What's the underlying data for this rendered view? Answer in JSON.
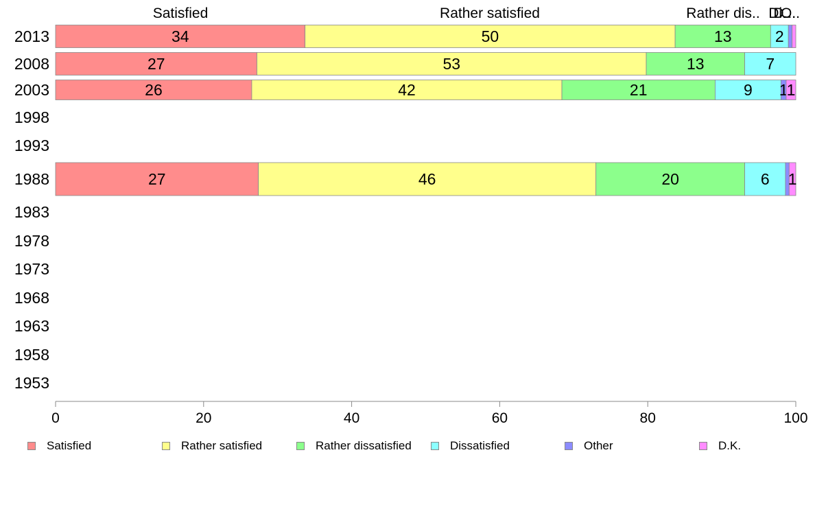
{
  "chart_data": {
    "type": "bar",
    "orientation": "horizontal",
    "stacked": true,
    "title": "",
    "xlabel": "",
    "ylabel": "",
    "xlim": [
      0,
      100
    ],
    "x_ticks": [
      "0",
      "20",
      "40",
      "60",
      "80",
      "100"
    ],
    "categories": [
      "2013",
      "2008",
      "2003",
      "1998",
      "1993",
      "1988",
      "1983",
      "1978",
      "1973",
      "1968",
      "1963",
      "1958",
      "1953"
    ],
    "top_labels": [
      "Satisfied",
      "Rather satisfied",
      "Rather dis..",
      "Di..",
      "O..",
      "D..."
    ],
    "legend_position": "bottom",
    "grid": false,
    "series": [
      {
        "name": "Satisfied",
        "color": "#ff8c8c",
        "values": [
          33.7,
          27.2,
          26.5,
          null,
          null,
          27.4,
          null,
          null,
          null,
          null,
          null,
          null,
          null
        ],
        "labels": [
          "34",
          "27",
          "26",
          "",
          "",
          "27",
          "",
          "",
          "",
          "",
          "",
          "",
          ""
        ]
      },
      {
        "name": "Rather satisfied",
        "color": "#ffff8c",
        "values": [
          50.0,
          52.6,
          41.9,
          null,
          null,
          45.6,
          null,
          null,
          null,
          null,
          null,
          null,
          null
        ],
        "labels": [
          "50",
          "53",
          "42",
          "",
          "",
          "46",
          "",
          "",
          "",
          "",
          "",
          "",
          ""
        ]
      },
      {
        "name": "Rather dissatisfied",
        "color": "#8cff8c",
        "values": [
          12.9,
          13.3,
          20.7,
          null,
          null,
          20.1,
          null,
          null,
          null,
          null,
          null,
          null,
          null
        ],
        "labels": [
          "13",
          "13",
          "21",
          "",
          "",
          "20",
          "",
          "",
          "",
          "",
          "",
          "",
          ""
        ]
      },
      {
        "name": "Dissatisfied",
        "color": "#8cffff",
        "values": [
          2.4,
          6.9,
          8.9,
          null,
          null,
          5.5,
          null,
          null,
          null,
          null,
          null,
          null,
          null
        ],
        "labels": [
          "2",
          "7",
          "9",
          "",
          "",
          "6",
          "",
          "",
          "",
          "",
          "",
          "",
          ""
        ]
      },
      {
        "name": "Other",
        "color": "#8c8cff",
        "values": [
          0.5,
          0.0,
          0.7,
          null,
          null,
          0.5,
          null,
          null,
          null,
          null,
          null,
          null,
          null
        ],
        "labels": [
          "",
          "",
          "1",
          "",
          "",
          "",
          "",
          "",
          "",
          "",
          "",
          "",
          ""
        ]
      },
      {
        "name": "D.K.",
        "color": "#ff8cff",
        "values": [
          0.5,
          0.0,
          1.3,
          null,
          null,
          0.9,
          null,
          null,
          null,
          null,
          null,
          null,
          null
        ],
        "labels": [
          "",
          "",
          "1",
          "",
          "",
          "1",
          "",
          "",
          "",
          "",
          "",
          "",
          ""
        ]
      }
    ]
  }
}
